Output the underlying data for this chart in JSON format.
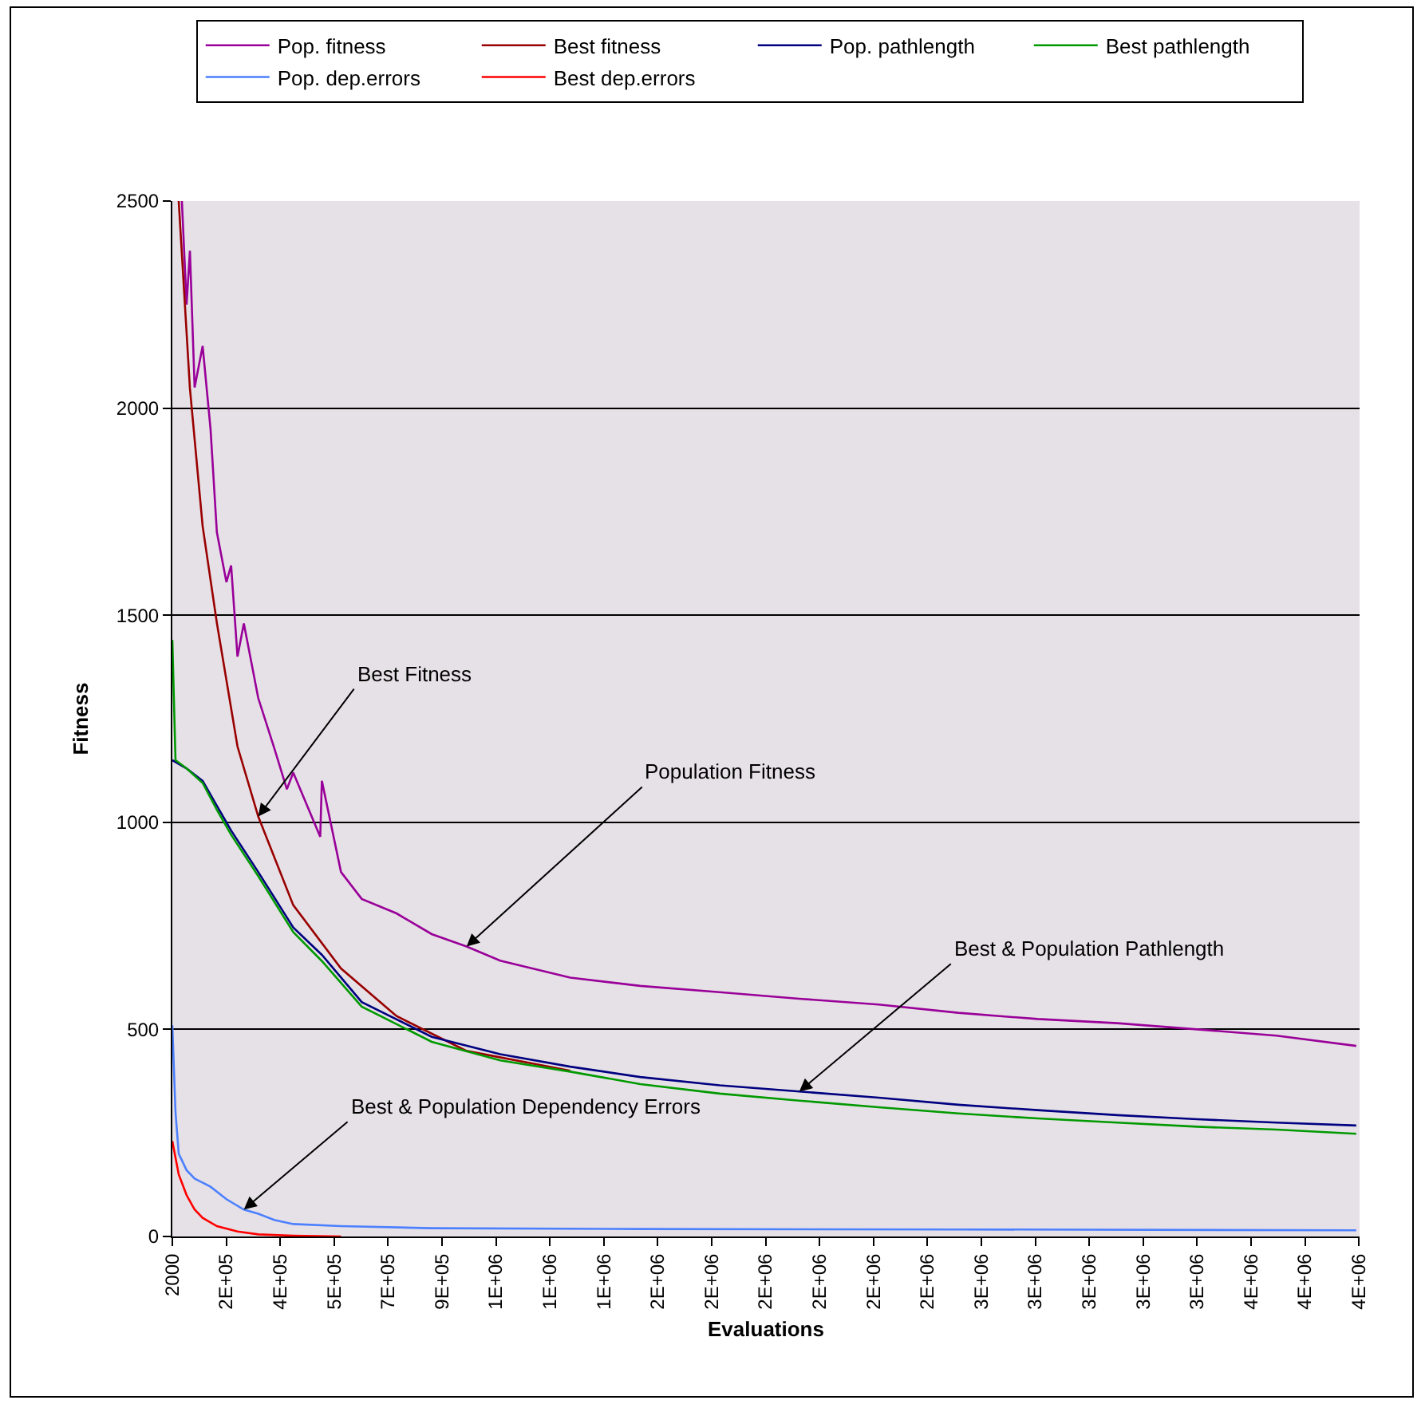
{
  "chart_data": {
    "type": "line",
    "xlabel": "Evaluations",
    "ylabel": "Fitness",
    "xlim": [
      2000,
      3920000
    ],
    "xticks": [
      {
        "value": 2000,
        "label": "2000"
      },
      {
        "value": 180000,
        "label": "2E+05"
      },
      {
        "value": 358000,
        "label": "4E+05"
      },
      {
        "value": 536000,
        "label": "5E+05"
      },
      {
        "value": 714000,
        "label": "7E+05"
      },
      {
        "value": 892000,
        "label": "9E+05"
      },
      {
        "value": 1070000,
        "label": "1E+06"
      },
      {
        "value": 1248000,
        "label": "1E+06"
      },
      {
        "value": 1426000,
        "label": "1E+06"
      },
      {
        "value": 1604000,
        "label": "2E+06"
      },
      {
        "value": 1782000,
        "label": "2E+06"
      },
      {
        "value": 1960000,
        "label": "2E+06"
      },
      {
        "value": 2138000,
        "label": "2E+06"
      },
      {
        "value": 2316000,
        "label": "2E+06"
      },
      {
        "value": 2494000,
        "label": "2E+06"
      },
      {
        "value": 2672000,
        "label": "3E+06"
      },
      {
        "value": 2850000,
        "label": "3E+06"
      },
      {
        "value": 3028000,
        "label": "3E+06"
      },
      {
        "value": 3206000,
        "label": "3E+06"
      },
      {
        "value": 3384000,
        "label": "3E+06"
      },
      {
        "value": 3562000,
        "label": "4E+06"
      },
      {
        "value": 3740000,
        "label": "4E+06"
      },
      {
        "value": 3918000,
        "label": "4E+06"
      }
    ],
    "ylim": [
      0,
      2500
    ],
    "yticks": [
      0,
      500,
      1000,
      1500,
      2000,
      2500
    ],
    "grid": "y",
    "legend": "top",
    "marker": "none",
    "line_style": "solid",
    "series": [
      {
        "name": "Pop. fitness",
        "color": "#990099",
        "x": [
          33500,
          49000,
          60000,
          75500,
          102000,
          128000,
          149000,
          180500,
          196000,
          217000,
          238000,
          285500,
          338000,
          380000,
          401000,
          490000,
          495500,
          558600,
          627000,
          742000,
          858000,
          973000,
          1084000,
          1315000,
          1546000,
          1808000,
          2071000,
          2333000,
          2596000,
          2858000,
          3121000,
          3384000,
          3646000,
          3909000
        ],
        "values": [
          2500,
          2250,
          2380,
          2050,
          2150,
          1950,
          1700,
          1580,
          1620,
          1400,
          1480,
          1300,
          1180,
          1080,
          1120,
          965,
          1100,
          880,
          815,
          780,
          730,
          700,
          666,
          625,
          605,
          590,
          574,
          560,
          540,
          525,
          515,
          500,
          485,
          460
        ]
      },
      {
        "name": "Best fitness",
        "color": "#990000",
        "x": [
          23000,
          60000,
          102000,
          149000,
          217000,
          285500,
          401000,
          558600,
          742000,
          973000,
          1315000
        ],
        "values": [
          2500,
          2048,
          1715,
          1481,
          1183,
          1014,
          800,
          647,
          532,
          448,
          400
        ]
      },
      {
        "name": "Pop. pathlength",
        "color": "#000080",
        "x": [
          2000,
          49000,
          102000,
          149000,
          196000,
          285500,
          401000,
          495500,
          627000,
          858000,
          1084000,
          1315000,
          1546000,
          1808000,
          2071000,
          2333000,
          2596000,
          2858000,
          3121000,
          3384000,
          3646000,
          3909000
        ],
        "values": [
          1150,
          1130,
          1100,
          1040,
          980,
          880,
          746,
          680,
          566,
          482,
          440,
          410,
          385,
          365,
          350,
          335,
          318,
          305,
          293,
          283,
          275,
          268
        ]
      },
      {
        "name": "Best pathlength",
        "color": "#009900",
        "x": [
          2000,
          12500,
          49000,
          102000,
          149000,
          196000,
          285500,
          401000,
          495500,
          627000,
          858000,
          1084000,
          1315000,
          1546000,
          1808000,
          2071000,
          2333000,
          2596000,
          2858000,
          3121000,
          3384000,
          3646000,
          3909000
        ],
        "values": [
          1440,
          1150,
          1130,
          1095,
          1030,
          970,
          870,
          735,
          665,
          555,
          470,
          425,
          398,
          368,
          345,
          328,
          312,
          297,
          285,
          275,
          265,
          258,
          248
        ]
      },
      {
        "name": "Pop. dep.errors",
        "color": "#4d80ff",
        "x": [
          2000,
          12500,
          23000,
          49000,
          75500,
          128000,
          180500,
          238000,
          285500,
          338000,
          401000,
          558600,
          858000,
          1546000,
          2596000,
          3909000
        ],
        "values": [
          510,
          300,
          200,
          160,
          140,
          120,
          90,
          65,
          55,
          40,
          30,
          25,
          20,
          18,
          17,
          15
        ]
      },
      {
        "name": "Best dep.errors",
        "color": "#ff0000",
        "x": [
          2000,
          23000,
          49000,
          75500,
          102000,
          149000,
          217000,
          285500,
          401000,
          558600
        ],
        "values": [
          230,
          150,
          100,
          65,
          45,
          25,
          12,
          5,
          2,
          0
        ]
      }
    ],
    "annotations": [
      {
        "text": "Best Fitness",
        "x": 285500,
        "y": 1014
      },
      {
        "text": "Population Fitness",
        "x": 973000,
        "y": 700
      },
      {
        "text": "Best & Population Pathlength",
        "x": 2071000,
        "y": 350
      },
      {
        "text": "Best & Population Dependency Errors",
        "x": 238000,
        "y": 65
      }
    ]
  }
}
